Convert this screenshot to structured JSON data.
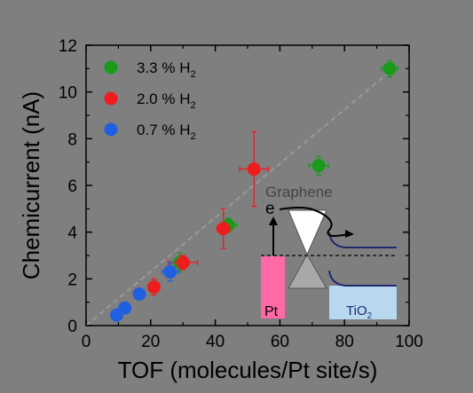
{
  "chart_data": {
    "type": "scatter",
    "xlabel": "TOF (molecules/Pt site/s)",
    "ylabel": "Chemicurrent (nA)",
    "xlim": [
      0,
      100
    ],
    "ylim": [
      0,
      12
    ],
    "xticks": [
      0,
      20,
      40,
      60,
      80,
      100
    ],
    "yticks": [
      0,
      2,
      4,
      6,
      8,
      10,
      12
    ],
    "grid": false,
    "legend_position": "top-left",
    "colors": {
      "background": "#7f7f7f",
      "trend": "#999999",
      "s33": "#1a9a1a",
      "s20": "#ee1c1c",
      "s07": "#2060e0"
    },
    "series": [
      {
        "name": "3.3 % H2",
        "label_main": "3.3 % H",
        "label_sub": "2",
        "color": "#1a9a1a",
        "points": [
          {
            "x": 29,
            "y": 2.7,
            "xerr": 2.5,
            "yerr": 0.4
          },
          {
            "x": 44,
            "y": 4.3,
            "xerr": 2.5,
            "yerr": 0.3
          },
          {
            "x": 72,
            "y": 6.85,
            "xerr": 3.0,
            "yerr": 0.4
          },
          {
            "x": 94,
            "y": 11.0,
            "xerr": 2.5,
            "yerr": 0.35
          }
        ]
      },
      {
        "name": "2.0 % H2",
        "label_main": "2.0 % H",
        "label_sub": "2",
        "color": "#ee1c1c",
        "points": [
          {
            "x": 21,
            "y": 1.65,
            "xerr": 1.5,
            "yerr": 0.35
          },
          {
            "x": 30,
            "y": 2.7,
            "xerr": 4.5,
            "yerr": 0.3
          },
          {
            "x": 42.5,
            "y": 4.15,
            "xerr": 2.0,
            "yerr": 0.85
          },
          {
            "x": 52,
            "y": 6.7,
            "xerr": 4.5,
            "yerr": 1.6
          }
        ]
      },
      {
        "name": "0.7 % H2",
        "label_main": "0.7 % H",
        "label_sub": "2",
        "color": "#2060e0",
        "points": [
          {
            "x": 9.5,
            "y": 0.45,
            "xerr": 0.5,
            "yerr": 0.1
          },
          {
            "x": 12,
            "y": 0.75,
            "xerr": 0.5,
            "yerr": 0.1
          },
          {
            "x": 16.5,
            "y": 1.35,
            "xerr": 0.5,
            "yerr": 0.15
          },
          {
            "x": 26,
            "y": 2.3,
            "xerr": 2.5,
            "yerr": 0.4
          }
        ]
      }
    ],
    "trend_line": {
      "x0": 0,
      "y0": 0,
      "x1": 96,
      "y1": 11.1
    },
    "inset": {
      "graphene_label": "Graphene",
      "electron_label": "e",
      "pt_label": "Pt",
      "tio2_main": "TiO",
      "tio2_sub": "2",
      "pt_color": "#ff69a8",
      "tio2_color": "#b8d8f0"
    }
  }
}
